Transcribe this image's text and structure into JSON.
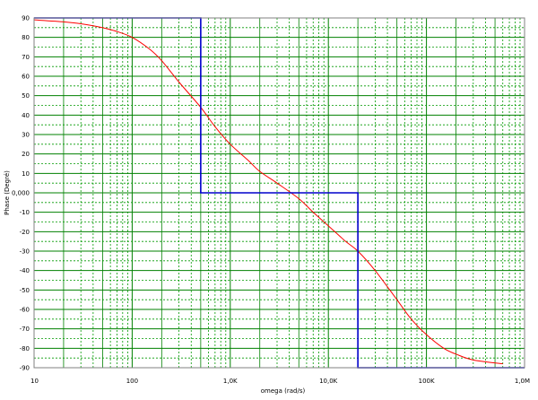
{
  "chart_data": {
    "type": "line",
    "title": "",
    "xlabel": "omega  (rad/s)",
    "ylabel": "Phase (Degré)",
    "xscale": "log",
    "xlim": [
      10,
      1000000
    ],
    "ylim": [
      -90,
      90
    ],
    "grid": true,
    "legend": "none",
    "x_tick_labels": [
      {
        "value": 10,
        "label": "10"
      },
      {
        "value": 100,
        "label": "100"
      },
      {
        "value": 1000,
        "label": "1,0K"
      },
      {
        "value": 10000,
        "label": "10,0K"
      },
      {
        "value": 100000,
        "label": "100K"
      },
      {
        "value": 1000000,
        "label": "1,0M"
      }
    ],
    "y_tick_labels": [
      {
        "value": 90,
        "label": "90"
      },
      {
        "value": 80,
        "label": "80"
      },
      {
        "value": 70,
        "label": "70"
      },
      {
        "value": 60,
        "label": "60"
      },
      {
        "value": 50,
        "label": "50"
      },
      {
        "value": 40,
        "label": "40"
      },
      {
        "value": 30,
        "label": "30"
      },
      {
        "value": 20,
        "label": "20"
      },
      {
        "value": 10,
        "label": "10"
      },
      {
        "value": 0,
        "label": "0,000"
      },
      {
        "value": -10,
        "label": "-10"
      },
      {
        "value": -20,
        "label": "-20"
      },
      {
        "value": -30,
        "label": "-30"
      },
      {
        "value": -40,
        "label": "-40"
      },
      {
        "value": -50,
        "label": "-50"
      },
      {
        "value": -60,
        "label": "-60"
      },
      {
        "value": -70,
        "label": "-70"
      },
      {
        "value": -80,
        "label": "-80"
      },
      {
        "value": -90,
        "label": "-90"
      }
    ],
    "series": [
      {
        "color": "#ff0000",
        "style": "smooth",
        "x": [
          10,
          20,
          30,
          50,
          70,
          100,
          150,
          200,
          300,
          500,
          700,
          1000,
          1500,
          2000,
          3000,
          5000,
          7000,
          10000,
          15000,
          20000,
          30000,
          50000,
          70000,
          100000,
          150000,
          200000,
          300000,
          600000
        ],
        "y": [
          89,
          88,
          87,
          85,
          83,
          80,
          74,
          68,
          57,
          44,
          34,
          25,
          17,
          11,
          5,
          -3,
          -10,
          -17,
          -25,
          -30,
          -40,
          -55,
          -65,
          -73,
          -80,
          -83,
          -86,
          -88
        ]
      },
      {
        "color": "#0000cc",
        "style": "step",
        "x": [
          10,
          500,
          500,
          20000,
          20000,
          1000000
        ],
        "y": [
          90,
          90,
          0,
          0,
          -90,
          -90
        ]
      }
    ],
    "colors": {
      "grid_major": "#008000",
      "grid_minor": "#009900",
      "frame": "#808080"
    }
  }
}
